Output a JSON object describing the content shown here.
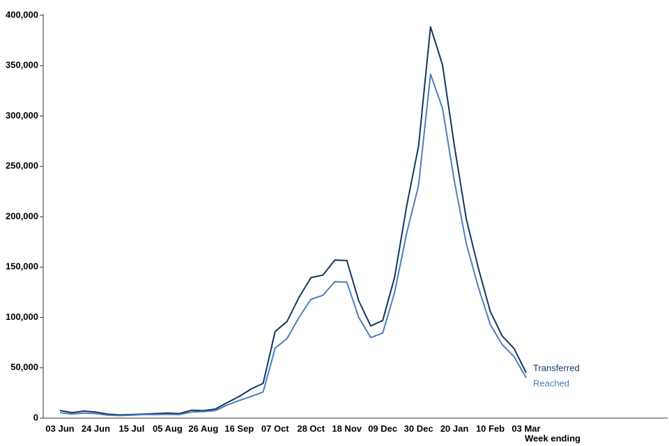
{
  "chart_data": {
    "type": "line",
    "x_label": "Week ending",
    "categories": [
      "03 Jun",
      null,
      null,
      "24 Jun",
      null,
      null,
      "15 Jul",
      null,
      null,
      "05 Aug",
      null,
      null,
      "26 Aug",
      null,
      null,
      "16 Sep",
      null,
      null,
      "07 Oct",
      null,
      null,
      "28 Oct",
      null,
      null,
      "18 Nov",
      null,
      null,
      "09 Dec",
      null,
      null,
      "30 Dec",
      null,
      null,
      "20 Jan",
      null,
      null,
      "10 Feb",
      null,
      null,
      "03 Mar"
    ],
    "series": [
      {
        "name": "Transferred",
        "color": "#12365e",
        "values": [
          7600,
          5500,
          7000,
          6000,
          4000,
          3200,
          3500,
          4000,
          4500,
          5000,
          4500,
          7800,
          7500,
          9000,
          15500,
          21500,
          29000,
          34500,
          86000,
          96000,
          120000,
          139500,
          142000,
          157000,
          156500,
          116500,
          91500,
          97000,
          140000,
          210500,
          270000,
          388500,
          351000,
          270000,
          197500,
          149000,
          106000,
          81500,
          69000,
          45000
        ]
      },
      {
        "name": "Reached",
        "color": "#4a7ebb",
        "values": [
          5500,
          4000,
          5000,
          4500,
          3000,
          2500,
          3000,
          3500,
          3500,
          3800,
          3500,
          6000,
          6500,
          7500,
          13000,
          17500,
          21500,
          26000,
          69500,
          79000,
          100000,
          118000,
          122000,
          135500,
          135000,
          100000,
          80000,
          84500,
          125000,
          183500,
          231000,
          341500,
          308000,
          235000,
          173000,
          130000,
          93000,
          73000,
          61000,
          40000
        ]
      }
    ],
    "ylim": [
      0,
      400000
    ],
    "yticks": [
      0,
      {
        "value": 50000,
        "label": "50,000"
      },
      {
        "value": 100000,
        "label": "100,000"
      },
      {
        "value": 150000,
        "label": "150,000"
      },
      {
        "value": 200000,
        "label": "200,000"
      },
      {
        "value": 250000,
        "label": "250,000"
      },
      {
        "value": 300000,
        "label": "300,000"
      },
      {
        "value": 350000,
        "label": "350,000"
      },
      {
        "value": 400000,
        "label": "400,000"
      }
    ]
  }
}
